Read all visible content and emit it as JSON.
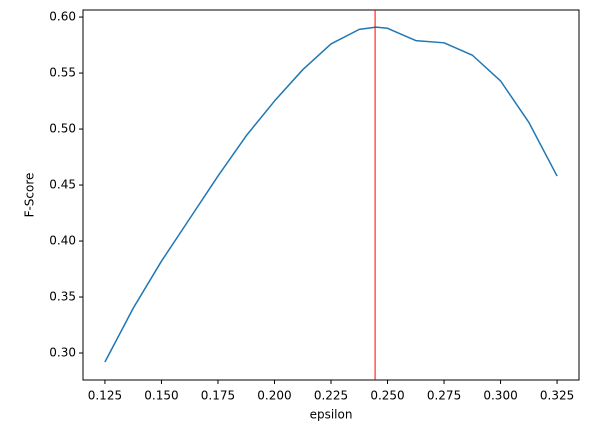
{
  "chart_data": {
    "type": "line",
    "xlabel": "epsilon",
    "ylabel": "F-Score",
    "x": [
      0.125,
      0.1375,
      0.15,
      0.1625,
      0.175,
      0.1875,
      0.2,
      0.2125,
      0.225,
      0.2375,
      0.245,
      0.25,
      0.2625,
      0.275,
      0.2875,
      0.3,
      0.3125,
      0.325
    ],
    "series": [
      {
        "color": "#1f77b4",
        "values": [
          0.292,
          0.34,
          0.382,
          0.42,
          0.458,
          0.494,
          0.525,
          0.553,
          0.576,
          0.589,
          0.591,
          0.59,
          0.579,
          0.577,
          0.566,
          0.543,
          0.506,
          0.458
        ]
      }
    ],
    "vline": {
      "value": 0.2445,
      "color": "#ff0000"
    },
    "xlim": [
      0.1153,
      0.3347
    ],
    "ylim": [
      0.2759,
      0.6063
    ],
    "xticks": [
      0.125,
      {
        "value": 0.15,
        "label": "0.150"
      },
      0.175,
      {
        "value": 0.2,
        "label": "0.200"
      },
      0.225,
      {
        "value": 0.25,
        "label": "0.250"
      },
      0.275,
      {
        "value": 0.3,
        "label": "0.300"
      },
      0.325
    ],
    "yticks": [
      {
        "value": 0.3,
        "label": "0.30"
      },
      0.35,
      {
        "value": 0.4,
        "label": "0.40"
      },
      0.45,
      {
        "value": 0.5,
        "label": "0.50"
      },
      0.55,
      {
        "value": 0.6,
        "label": "0.60"
      }
    ]
  }
}
